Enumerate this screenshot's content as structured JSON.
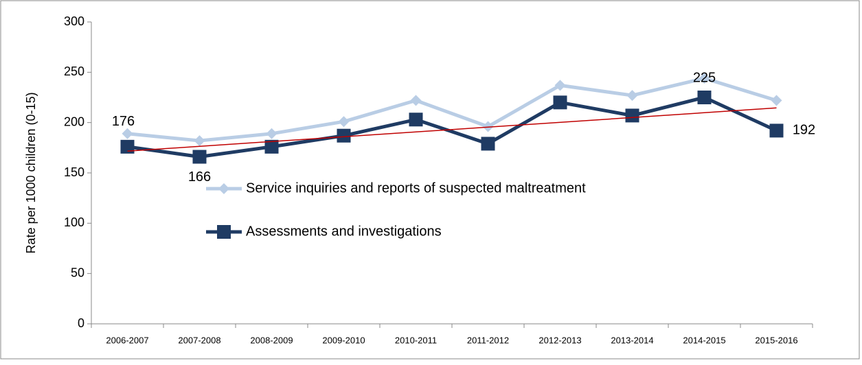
{
  "chart_data": {
    "type": "line",
    "y_label": "Rate per 1000 children (0-15)",
    "categories": [
      "2006-2007",
      "2007-2008",
      "2008-2009",
      "2009-2010",
      "2010-2011",
      "2011-2012",
      "2012-2013",
      "2013-2014",
      "2014-2015",
      "2015-2016"
    ],
    "series": [
      {
        "name": "Service inquiries and reports of suspected maltreatment",
        "color": "#b9cde5",
        "marker": "diamond",
        "values": [
          189,
          182,
          189,
          201,
          222,
          196,
          237,
          227,
          244,
          222
        ]
      },
      {
        "name": "Assessments and investigations",
        "color": "#1f3b63",
        "marker": "square",
        "values": [
          176,
          166,
          176,
          187,
          203,
          179,
          220,
          207,
          225,
          192
        ],
        "labeled_points": [
          0,
          1,
          8,
          9
        ],
        "trendline": {
          "type": "linear",
          "color": "#c00000"
        }
      }
    ],
    "ylim": [
      0,
      300
    ],
    "yticks": [
      0,
      50,
      100,
      150,
      200,
      250,
      300
    ]
  }
}
